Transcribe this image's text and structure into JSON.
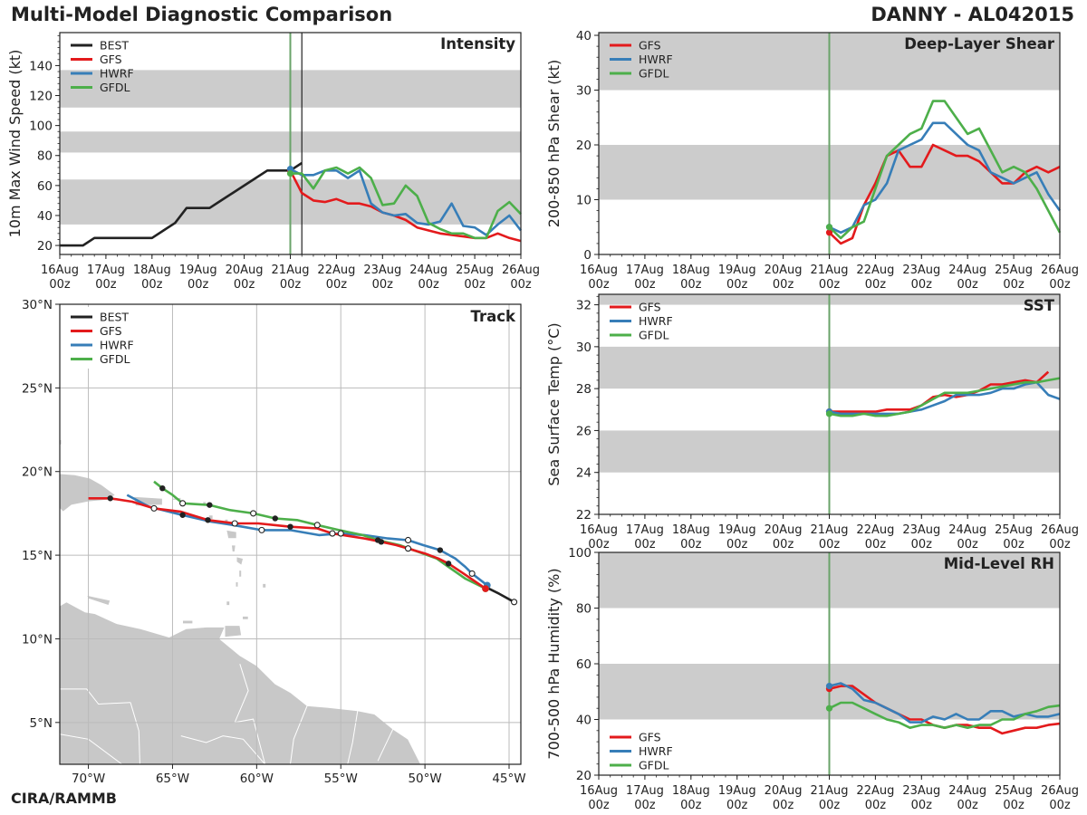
{
  "header": {
    "title": "Multi-Model Diagnostic Comparison",
    "storm": "DANNY - AL042015"
  },
  "credit": "CIRA/RAMMB",
  "colors": {
    "best": "#222222",
    "gfs": "#e31a1c",
    "hwrf": "#377eb8",
    "gfdl": "#4daf4a",
    "band": "#cccccc",
    "land": "#c8c8c8",
    "grid": "#cccccc",
    "init_line": "#6aa36a"
  },
  "time_axis": {
    "ticks": [
      0,
      24,
      48,
      72,
      96,
      120,
      144,
      168,
      192,
      216,
      240
    ],
    "labels": [
      [
        "16Aug",
        "00z"
      ],
      [
        "17Aug",
        "00z"
      ],
      [
        "18Aug",
        "00z"
      ],
      [
        "19Aug",
        "00z"
      ],
      [
        "20Aug",
        "00z"
      ],
      [
        "21Aug",
        "00z"
      ],
      [
        "22Aug",
        "00z"
      ],
      [
        "23Aug",
        "00z"
      ],
      [
        "24Aug",
        "00z"
      ],
      [
        "25Aug",
        "00z"
      ],
      [
        "26Aug",
        "00z"
      ]
    ],
    "range": [
      0,
      240
    ],
    "init_hour": 120,
    "current_hour": 126
  },
  "chart_data": [
    {
      "id": "intensity",
      "type": "line",
      "title": "Intensity",
      "ylabel": "10m Max Wind Speed (kt)",
      "ylim": [
        14,
        162
      ],
      "yticks": [
        20,
        40,
        60,
        80,
        100,
        120,
        140
      ],
      "bands": [
        [
          34,
          64
        ],
        [
          82,
          96
        ],
        [
          112,
          137
        ]
      ],
      "legend": [
        "BEST",
        "GFS",
        "HWRF",
        "GFDL"
      ],
      "series": [
        {
          "name": "BEST",
          "key": "best",
          "x": [
            0,
            12,
            18,
            24,
            30,
            36,
            42,
            48,
            54,
            60,
            66,
            72,
            78,
            84,
            90,
            96,
            102,
            108,
            114,
            120,
            126
          ],
          "y": [
            20,
            20,
            25,
            25,
            25,
            25,
            25,
            25,
            30,
            35,
            45,
            45,
            45,
            50,
            55,
            60,
            65,
            70,
            70,
            70,
            75
          ]
        },
        {
          "name": "GFS",
          "key": "gfs",
          "x": [
            120,
            126,
            132,
            138,
            144,
            150,
            156,
            162,
            168,
            174,
            180,
            186,
            192,
            198,
            204,
            210,
            216,
            222,
            228,
            234,
            240
          ],
          "y": [
            70,
            55,
            50,
            49,
            51,
            48,
            48,
            46,
            42,
            40,
            37,
            32,
            30,
            28,
            27,
            26,
            25,
            25,
            28,
            25,
            23
          ]
        },
        {
          "name": "HWRF",
          "key": "hwrf",
          "x": [
            120,
            126,
            132,
            138,
            144,
            150,
            156,
            162,
            168,
            174,
            180,
            186,
            192,
            198,
            204,
            210,
            216,
            222,
            228,
            234,
            240
          ],
          "y": [
            71,
            67,
            67,
            70,
            70,
            65,
            70,
            48,
            42,
            40,
            41,
            35,
            34,
            36,
            48,
            33,
            32,
            27,
            34,
            40,
            30
          ]
        },
        {
          "name": "GFDL",
          "key": "gfdl",
          "x": [
            120,
            126,
            132,
            138,
            144,
            150,
            156,
            162,
            168,
            174,
            180,
            186,
            192,
            198,
            204,
            210,
            216,
            222,
            228,
            234,
            240
          ],
          "y": [
            68,
            68,
            58,
            70,
            72,
            68,
            72,
            65,
            47,
            48,
            60,
            53,
            35,
            31,
            28,
            28,
            25,
            25,
            43,
            49,
            41
          ]
        }
      ]
    },
    {
      "id": "shear",
      "type": "line",
      "title": "Deep-Layer Shear",
      "ylabel": "200-850 hPa Shear (kt)",
      "ylim": [
        0,
        40.5
      ],
      "yticks": [
        0,
        10,
        20,
        30,
        40
      ],
      "bands": [
        [
          10,
          20
        ],
        [
          30,
          40.5
        ]
      ],
      "legend": [
        "GFS",
        "HWRF",
        "GFDL"
      ],
      "series": [
        {
          "name": "GFS",
          "key": "gfs",
          "x": [
            120,
            126,
            132,
            138,
            144,
            150,
            156,
            162,
            168,
            174,
            180,
            186,
            192,
            198,
            204,
            210,
            216,
            222,
            228,
            234,
            240
          ],
          "y": [
            4,
            2,
            3,
            9,
            13,
            18,
            19,
            16,
            16,
            20,
            19,
            18,
            18,
            17,
            15,
            13,
            13,
            15,
            16,
            15,
            16
          ]
        },
        {
          "name": "HWRF",
          "key": "hwrf",
          "x": [
            120,
            126,
            132,
            138,
            144,
            150,
            156,
            162,
            168,
            174,
            180,
            186,
            192,
            198,
            204,
            210,
            216,
            222,
            228,
            234,
            240
          ],
          "y": [
            5,
            4,
            5,
            9,
            10,
            13,
            19,
            20,
            21,
            24,
            24,
            22,
            20,
            19,
            15,
            14,
            13,
            14,
            15,
            11,
            8
          ]
        },
        {
          "name": "GFDL",
          "key": "gfdl",
          "x": [
            120,
            126,
            132,
            138,
            144,
            150,
            156,
            162,
            168,
            174,
            180,
            186,
            192,
            198,
            204,
            210,
            216,
            222,
            228,
            234,
            240
          ],
          "y": [
            5,
            3,
            5,
            6,
            12,
            18,
            20,
            22,
            23,
            28,
            28,
            25,
            22,
            23,
            19,
            15,
            16,
            15,
            12,
            8,
            4
          ]
        }
      ]
    },
    {
      "id": "sst",
      "type": "line",
      "title": "SST",
      "ylabel": "Sea Surface Temp (°C)",
      "ylim": [
        22,
        32.5
      ],
      "yticks": [
        22,
        24,
        26,
        28,
        30,
        32
      ],
      "bands": [
        [
          24,
          26
        ],
        [
          28,
          30
        ],
        [
          32,
          32.5
        ]
      ],
      "legend": [
        "GFS",
        "HWRF",
        "GFDL"
      ],
      "series": [
        {
          "name": "GFS",
          "key": "gfs",
          "x": [
            120,
            126,
            132,
            138,
            144,
            150,
            156,
            162,
            168,
            174,
            180,
            186,
            192,
            198,
            204,
            210,
            216,
            222,
            228,
            234
          ],
          "y": [
            26.9,
            26.9,
            26.9,
            26.9,
            26.9,
            27.0,
            27.0,
            27.0,
            27.2,
            27.6,
            27.7,
            27.6,
            27.7,
            27.9,
            28.2,
            28.2,
            28.3,
            28.4,
            28.3,
            28.8
          ]
        },
        {
          "name": "HWRF",
          "key": "hwrf",
          "x": [
            120,
            126,
            132,
            138,
            144,
            150,
            156,
            162,
            168,
            174,
            180,
            186,
            192,
            198,
            204,
            210,
            216,
            222,
            228,
            234,
            240
          ],
          "y": [
            26.9,
            26.8,
            26.8,
            26.8,
            26.8,
            26.8,
            26.8,
            26.9,
            27.0,
            27.2,
            27.4,
            27.7,
            27.7,
            27.7,
            27.8,
            28.0,
            28.0,
            28.2,
            28.3,
            27.7,
            27.5
          ]
        },
        {
          "name": "GFDL",
          "key": "gfdl",
          "x": [
            120,
            126,
            132,
            138,
            144,
            150,
            156,
            162,
            168,
            174,
            180,
            186,
            192,
            198,
            204,
            210,
            216,
            222,
            228,
            234,
            240
          ],
          "y": [
            26.8,
            26.7,
            26.7,
            26.8,
            26.7,
            26.7,
            26.8,
            26.9,
            27.2,
            27.5,
            27.8,
            27.8,
            27.8,
            27.9,
            28.0,
            28.1,
            28.2,
            28.3,
            28.3,
            28.4,
            28.5
          ]
        }
      ]
    },
    {
      "id": "rh",
      "type": "line",
      "title": "Mid-Level RH",
      "ylabel": "700-500 hPa Humidity (%)",
      "ylim": [
        20,
        100
      ],
      "yticks": [
        20,
        40,
        60,
        80,
        100
      ],
      "bands": [
        [
          40,
          60
        ],
        [
          80,
          100
        ]
      ],
      "legend": [
        "GFS",
        "HWRF",
        "GFDL"
      ],
      "series": [
        {
          "name": "GFS",
          "key": "gfs",
          "x": [
            120,
            126,
            132,
            138,
            144,
            150,
            156,
            162,
            168,
            174,
            180,
            186,
            192,
            198,
            204,
            210,
            216,
            222,
            228,
            234,
            240
          ],
          "y": [
            51,
            52,
            52,
            49,
            46,
            44,
            42,
            40,
            40,
            38,
            37,
            38,
            38,
            37,
            37,
            35,
            36,
            37,
            37,
            38,
            38.5
          ]
        },
        {
          "name": "HWRF",
          "key": "hwrf",
          "x": [
            120,
            126,
            132,
            138,
            144,
            150,
            156,
            162,
            168,
            174,
            180,
            186,
            192,
            198,
            204,
            210,
            216,
            222,
            228,
            234,
            240
          ],
          "y": [
            52,
            53,
            51,
            47,
            46,
            44,
            42,
            39,
            39,
            41,
            40,
            42,
            40,
            40,
            43,
            43,
            41,
            42,
            41,
            41,
            42
          ]
        },
        {
          "name": "GFDL",
          "key": "gfdl",
          "x": [
            120,
            126,
            132,
            138,
            144,
            150,
            156,
            162,
            168,
            174,
            180,
            186,
            192,
            198,
            204,
            210,
            216,
            222,
            228,
            234,
            240
          ],
          "y": [
            44,
            46,
            46,
            44,
            42,
            40,
            39,
            37,
            38,
            38,
            37,
            38,
            37,
            38,
            38,
            40,
            40,
            42,
            43,
            44.5,
            45
          ]
        }
      ]
    },
    {
      "id": "track",
      "type": "scatter",
      "title": "Track",
      "xlim": [
        -71.7,
        -44.3
      ],
      "ylim": [
        2.5,
        30.0
      ],
      "xticks": [
        -70,
        -65,
        -60,
        -55,
        -50,
        -45
      ],
      "xtick_labels": [
        "70°W",
        "65°W",
        "60°W",
        "55°W",
        "50°W",
        "45°W"
      ],
      "yticks": [
        5,
        10,
        15,
        20,
        25,
        30
      ],
      "ytick_labels": [
        "5°N",
        "10°N",
        "15°N",
        "20°N",
        "25°N",
        "30°N"
      ],
      "legend": [
        "BEST",
        "GFS",
        "HWRF",
        "GFDL"
      ],
      "series": [
        {
          "name": "BEST",
          "key": "best",
          "lon": [
            -46.4,
            -45.6,
            -44.7
          ],
          "lat": [
            13.1,
            12.7,
            12.2
          ],
          "open_markers": [
            2
          ]
        },
        {
          "name": "GFS",
          "key": "gfs",
          "lon": [
            -46.4,
            -47.7,
            -48.6,
            -49.2,
            -50.0,
            -51.0,
            -51.7,
            -52.6,
            -53.6,
            -55.5,
            -56.4,
            -58.0,
            -59.9,
            -61.3,
            -62.9,
            -64.5,
            -66.1,
            -67.4,
            -68.7,
            -70.0
          ],
          "lat": [
            13.0,
            13.9,
            14.5,
            14.8,
            15.1,
            15.4,
            15.6,
            15.8,
            16.0,
            16.3,
            16.6,
            16.7,
            16.9,
            16.9,
            17.1,
            17.6,
            17.8,
            18.2,
            18.4,
            18.4
          ],
          "filled_markers": [
            2,
            7,
            11,
            14,
            18
          ],
          "open_markers": [
            5,
            9,
            13,
            16
          ]
        },
        {
          "name": "HWRF",
          "key": "hwrf",
          "lon": [
            -46.3,
            -47.2,
            -47.6,
            -48.2,
            -49.1,
            -50.1,
            -51.0,
            -52.2,
            -53.6,
            -55.0,
            -56.3,
            -58.0,
            -59.7,
            -61.4,
            -62.7,
            -64.4,
            -66.4,
            -67.7
          ],
          "lat": [
            13.2,
            13.9,
            14.3,
            14.8,
            15.3,
            15.6,
            15.9,
            16.0,
            16.2,
            16.3,
            16.2,
            16.5,
            16.5,
            16.8,
            17.0,
            17.4,
            17.9,
            18.6
          ],
          "filled_markers": [
            4,
            15
          ],
          "open_markers": [
            1,
            6,
            9,
            12
          ]
        },
        {
          "name": "GFDL",
          "key": "gfdl",
          "lon": [
            -46.4,
            -47.6,
            -48.6,
            -49.3,
            -50.4,
            -51.5,
            -52.8,
            -53.7,
            -55.1,
            -56.4,
            -57.6,
            -58.9,
            -60.2,
            -61.6,
            -62.8,
            -64.4,
            -65.0,
            -65.6,
            -66.1
          ],
          "lat": [
            13.0,
            13.6,
            14.3,
            14.8,
            15.2,
            15.6,
            15.9,
            16.2,
            16.5,
            16.8,
            17.1,
            17.2,
            17.5,
            17.7,
            18.0,
            18.1,
            18.6,
            19.0,
            19.4
          ],
          "filled_markers": [
            6,
            11,
            14,
            17
          ],
          "open_markers": [
            9,
            12,
            15
          ]
        }
      ]
    }
  ]
}
